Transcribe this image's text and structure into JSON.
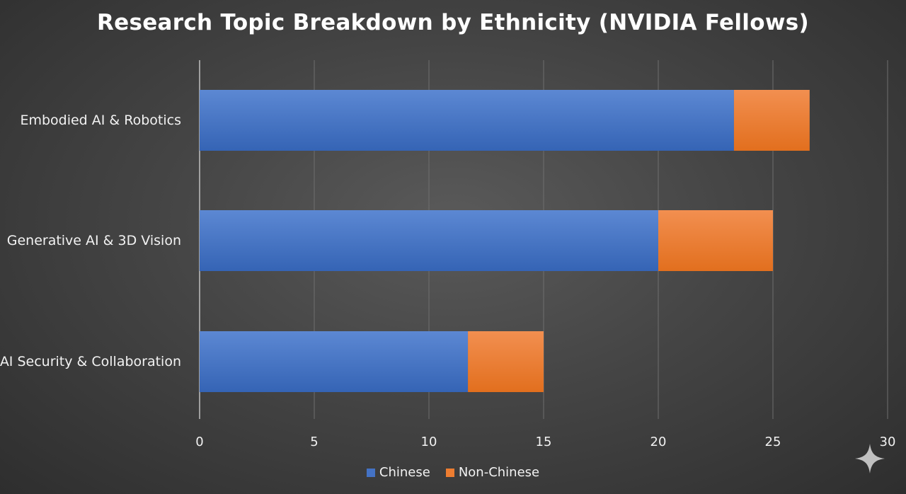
{
  "chart_data": {
    "type": "bar",
    "orientation": "horizontal",
    "stacked": true,
    "title": "Research Topic Breakdown by Ethnicity (NVIDIA Fellows)",
    "categories": [
      "Embodied AI & Robotics",
      "Generative AI & 3D Vision",
      "AI Security & Collaboration"
    ],
    "series": [
      {
        "name": "Chinese",
        "values": [
          23.3,
          20,
          11.7
        ],
        "color": "#4472c4"
      },
      {
        "name": "Non-Chinese",
        "values": [
          3.3,
          5,
          3.3
        ],
        "color": "#ed7d31"
      }
    ],
    "xlim": [
      0,
      30
    ],
    "ticks": [
      "0",
      "5",
      "10",
      "15",
      "20",
      "25",
      "30"
    ],
    "grid": true,
    "legend": "bottom-center"
  }
}
